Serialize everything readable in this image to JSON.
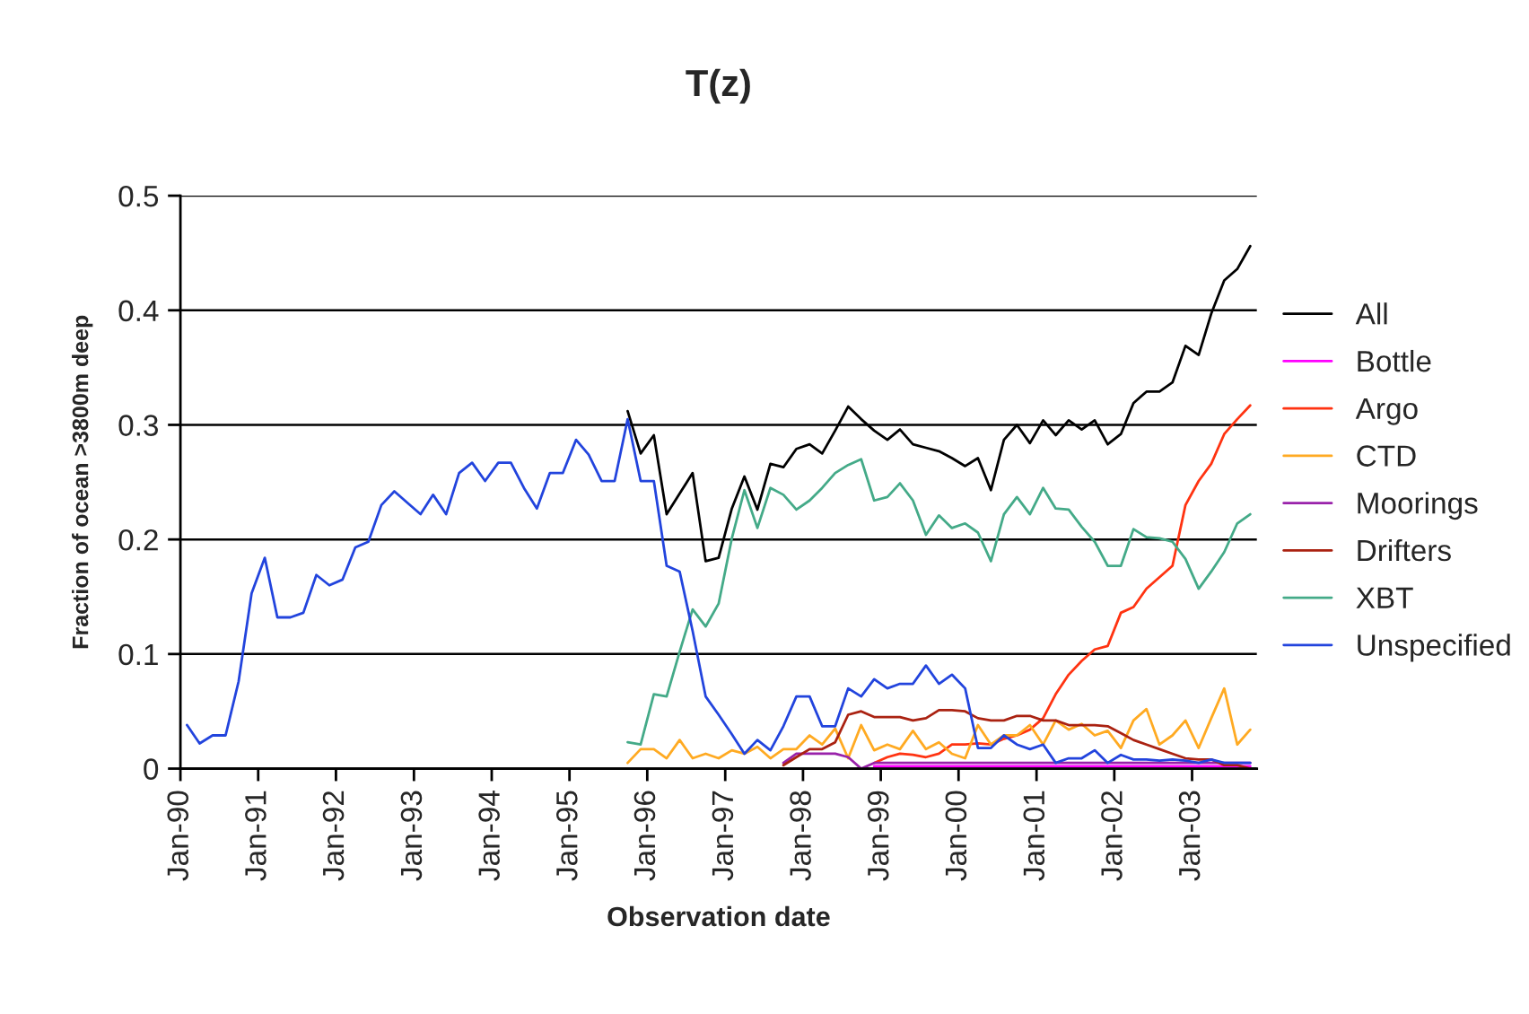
{
  "chart_data": {
    "type": "line",
    "title": "T(z)",
    "xlabel": "Observation date",
    "ylabel": "Fraction of ocean >3800m deep",
    "x": [
      "1990-02",
      "1990-04",
      "1990-06",
      "1990-08",
      "1990-10",
      "1990-12",
      "1991-02",
      "1991-04",
      "1991-06",
      "1991-08",
      "1991-10",
      "1991-12",
      "1992-02",
      "1992-04",
      "1992-06",
      "1992-08",
      "1992-10",
      "1992-12",
      "1993-02",
      "1993-04",
      "1993-06",
      "1993-08",
      "1993-10",
      "1993-12",
      "1994-02",
      "1994-04",
      "1994-06",
      "1994-08",
      "1994-10",
      "1994-12",
      "1995-02",
      "1995-04",
      "1995-06",
      "1995-08",
      "1995-10",
      "1995-12",
      "1996-02",
      "1996-04",
      "1996-06",
      "1996-08",
      "1996-10",
      "1996-12",
      "1997-02",
      "1997-04",
      "1997-06",
      "1997-08",
      "1997-10",
      "1997-12",
      "1998-02",
      "1998-04",
      "1998-06",
      "1998-08",
      "1998-10",
      "1998-12",
      "1999-02",
      "1999-04",
      "1999-06",
      "1999-08",
      "1999-10",
      "1999-12",
      "2000-02",
      "2000-04",
      "2000-06",
      "2000-08",
      "2000-10",
      "2000-12",
      "2001-02",
      "2001-04",
      "2001-06",
      "2001-08",
      "2001-10",
      "2001-12",
      "2002-02",
      "2002-04",
      "2002-06",
      "2002-08",
      "2002-10",
      "2002-12",
      "2003-02",
      "2003-04",
      "2003-06",
      "2003-08",
      "2003-10"
    ],
    "xlim": [
      "1990-01",
      "2003-11"
    ],
    "xticks": [
      {
        "value": "1990-01",
        "label": "Jan-90"
      },
      {
        "value": "1991-01",
        "label": "Jan-91"
      },
      {
        "value": "1992-01",
        "label": "Jan-92"
      },
      {
        "value": "1993-01",
        "label": "Jan-93"
      },
      {
        "value": "1994-01",
        "label": "Jan-94"
      },
      {
        "value": "1995-01",
        "label": "Jan-95"
      },
      {
        "value": "1996-01",
        "label": "Jan-96"
      },
      {
        "value": "1997-01",
        "label": "Jan-97"
      },
      {
        "value": "1998-01",
        "label": "Jan-98"
      },
      {
        "value": "1999-01",
        "label": "Jan-99"
      },
      {
        "value": "2000-01",
        "label": "Jan-00"
      },
      {
        "value": "2001-01",
        "label": "Jan-01"
      },
      {
        "value": "2002-01",
        "label": "Jan-02"
      },
      {
        "value": "2003-01",
        "label": "Jan-03"
      }
    ],
    "ylim": [
      0,
      0.5
    ],
    "yticks": [
      0,
      0.1,
      0.2,
      0.3,
      0.4,
      0.5
    ],
    "grid": "y",
    "legend": "right",
    "marker": "none",
    "line_style": "solid",
    "series": [
      {
        "name": "All",
        "color": "#000000",
        "values": [
          null,
          null,
          null,
          null,
          null,
          null,
          null,
          null,
          null,
          null,
          null,
          null,
          null,
          null,
          null,
          null,
          null,
          null,
          null,
          null,
          null,
          null,
          null,
          null,
          null,
          null,
          null,
          null,
          null,
          null,
          null,
          null,
          null,
          null,
          0.312,
          0.275,
          0.291,
          0.222,
          0.24,
          0.258,
          0.181,
          0.184,
          0.227,
          0.255,
          0.226,
          0.266,
          0.263,
          0.279,
          0.283,
          0.275,
          0.295,
          0.316,
          0.305,
          0.295,
          0.287,
          0.296,
          0.283,
          0.28,
          0.277,
          0.271,
          0.264,
          0.271,
          0.243,
          0.287,
          0.3,
          0.284,
          0.304,
          0.291,
          0.304,
          0.296,
          0.304,
          0.283,
          0.292,
          0.319,
          0.329,
          0.329,
          0.337,
          0.369,
          0.361,
          0.397,
          0.426,
          0.436,
          0.456
        ]
      },
      {
        "name": "Bottle",
        "color": "#ff00ff",
        "values": [
          null,
          null,
          null,
          null,
          null,
          null,
          null,
          null,
          null,
          null,
          null,
          null,
          null,
          null,
          null,
          null,
          null,
          null,
          null,
          null,
          null,
          null,
          null,
          null,
          null,
          null,
          null,
          null,
          null,
          null,
          null,
          null,
          null,
          null,
          null,
          null,
          null,
          null,
          null,
          null,
          null,
          null,
          null,
          null,
          null,
          null,
          null,
          null,
          null,
          null,
          null,
          null,
          null,
          0.002,
          0.002,
          0.002,
          0.002,
          0.002,
          0.002,
          0.002,
          0.002,
          0.002,
          0.002,
          0.002,
          0.002,
          0.002,
          0.002,
          0.002,
          0.002,
          0.002,
          0.002,
          0.002,
          0.002,
          0.002,
          0.002,
          0.002,
          0.002,
          0.002,
          0.002,
          0.002,
          0.002,
          0.002,
          0.002
        ]
      },
      {
        "name": "Argo",
        "color": "#ff3311",
        "values": [
          null,
          null,
          null,
          null,
          null,
          null,
          null,
          null,
          null,
          null,
          null,
          null,
          null,
          null,
          null,
          null,
          null,
          null,
          null,
          null,
          null,
          null,
          null,
          null,
          null,
          null,
          null,
          null,
          null,
          null,
          null,
          null,
          null,
          null,
          null,
          null,
          null,
          null,
          null,
          null,
          null,
          null,
          null,
          null,
          null,
          null,
          null,
          null,
          null,
          null,
          null,
          null,
          null,
          0.005,
          0.01,
          0.013,
          0.012,
          0.01,
          0.013,
          0.021,
          0.021,
          0.022,
          0.021,
          0.026,
          0.029,
          0.034,
          0.044,
          0.065,
          0.082,
          0.094,
          0.104,
          0.107,
          0.136,
          0.141,
          0.157,
          0.167,
          0.177,
          0.23,
          0.251,
          0.266,
          0.292,
          0.305,
          0.317
        ]
      },
      {
        "name": "CTD",
        "color": "#ffaa22",
        "values": [
          null,
          null,
          null,
          null,
          null,
          null,
          null,
          null,
          null,
          null,
          null,
          null,
          null,
          null,
          null,
          null,
          null,
          null,
          null,
          null,
          null,
          null,
          null,
          null,
          null,
          null,
          null,
          null,
          null,
          null,
          null,
          null,
          null,
          null,
          0.005,
          0.017,
          0.017,
          0.009,
          0.025,
          0.009,
          0.013,
          0.009,
          0.016,
          0.013,
          0.019,
          0.009,
          0.017,
          0.017,
          0.029,
          0.021,
          0.035,
          0.009,
          0.038,
          0.016,
          0.021,
          0.017,
          0.033,
          0.017,
          0.023,
          0.013,
          0.009,
          0.038,
          0.021,
          0.029,
          0.029,
          0.038,
          0.021,
          0.042,
          0.034,
          0.039,
          0.029,
          0.033,
          0.018,
          0.042,
          0.052,
          0.021,
          0.029,
          0.042,
          0.018,
          0.044,
          0.07,
          0.021,
          0.034
        ]
      },
      {
        "name": "Moorings",
        "color": "#9922aa",
        "values": [
          null,
          null,
          null,
          null,
          null,
          null,
          null,
          null,
          null,
          null,
          null,
          null,
          null,
          null,
          null,
          null,
          null,
          null,
          null,
          null,
          null,
          null,
          null,
          null,
          null,
          null,
          null,
          null,
          null,
          null,
          null,
          null,
          null,
          null,
          null,
          null,
          null,
          null,
          null,
          null,
          null,
          null,
          null,
          null,
          null,
          null,
          0.005,
          0.013,
          0.013,
          0.013,
          0.013,
          0.01,
          0,
          0.005,
          0.005,
          0.005,
          0.005,
          0.005,
          0.005,
          0.005,
          0.005,
          0.005,
          0.005,
          0.005,
          0.005,
          0.005,
          0.005,
          0.005,
          0.005,
          0.005,
          0.005,
          0.005,
          0.005,
          0.005,
          0.005,
          0.005,
          0.005,
          0.005,
          0.005,
          0.005,
          0.005,
          0.005,
          0.005
        ]
      },
      {
        "name": "Drifters",
        "color": "#aa2211",
        "values": [
          null,
          null,
          null,
          null,
          null,
          null,
          null,
          null,
          null,
          null,
          null,
          null,
          null,
          null,
          null,
          null,
          null,
          null,
          null,
          null,
          null,
          null,
          null,
          null,
          null,
          null,
          null,
          null,
          null,
          null,
          null,
          null,
          null,
          null,
          null,
          null,
          null,
          null,
          null,
          null,
          null,
          null,
          null,
          null,
          null,
          null,
          0.003,
          0.01,
          0.017,
          0.017,
          0.023,
          0.047,
          0.05,
          0.045,
          0.045,
          0.045,
          0.042,
          0.044,
          0.051,
          0.051,
          0.05,
          0.044,
          0.042,
          0.042,
          0.046,
          0.046,
          0.042,
          0.042,
          0.038,
          0.038,
          0.038,
          0.037,
          0.031,
          0.025,
          0.021,
          0.017,
          0.013,
          0.009,
          0.008,
          0.008,
          0.003,
          0.003,
          0
        ]
      },
      {
        "name": "XBT",
        "color": "#44aa88",
        "values": [
          null,
          null,
          null,
          null,
          null,
          null,
          null,
          null,
          null,
          null,
          null,
          null,
          null,
          null,
          null,
          null,
          null,
          null,
          null,
          null,
          null,
          null,
          null,
          null,
          null,
          null,
          null,
          null,
          null,
          null,
          null,
          null,
          null,
          null,
          0.023,
          0.021,
          0.065,
          0.063,
          0.102,
          0.139,
          0.124,
          0.144,
          0.201,
          0.243,
          0.21,
          0.245,
          0.239,
          0.226,
          0.234,
          0.245,
          0.258,
          0.265,
          0.27,
          0.234,
          0.237,
          0.249,
          0.234,
          0.204,
          0.221,
          0.21,
          0.214,
          0.206,
          0.181,
          0.222,
          0.237,
          0.222,
          0.245,
          0.227,
          0.226,
          0.211,
          0.198,
          0.177,
          0.177,
          0.209,
          0.202,
          0.201,
          0.198,
          0.183,
          0.157,
          0.172,
          0.189,
          0.214,
          0.222
        ]
      },
      {
        "name": "Unspecified",
        "color": "#2244dd",
        "values": [
          0.038,
          0.022,
          0.029,
          0.029,
          0.076,
          0.153,
          0.184,
          0.132,
          0.132,
          0.136,
          0.169,
          0.16,
          0.165,
          0.193,
          0.198,
          0.23,
          0.242,
          0.232,
          0.222,
          0.239,
          0.222,
          0.258,
          0.267,
          0.251,
          0.267,
          0.267,
          0.245,
          0.227,
          0.258,
          0.258,
          0.287,
          0.274,
          0.251,
          0.251,
          0.305,
          0.251,
          0.251,
          0.177,
          0.172,
          0.12,
          0.063,
          0.047,
          0.03,
          0.013,
          0.025,
          0.016,
          0.037,
          0.063,
          0.063,
          0.037,
          0.037,
          0.07,
          0.063,
          0.078,
          0.07,
          0.074,
          0.074,
          0.09,
          0.074,
          0.082,
          0.07,
          0.018,
          0.018,
          0.029,
          0.021,
          0.017,
          0.021,
          0.005,
          0.009,
          0.009,
          0.016,
          0.005,
          0.012,
          0.008,
          0.008,
          0.007,
          0.008,
          0.007,
          0.005,
          0.008,
          0.005,
          0.005,
          0.005
        ]
      }
    ]
  }
}
